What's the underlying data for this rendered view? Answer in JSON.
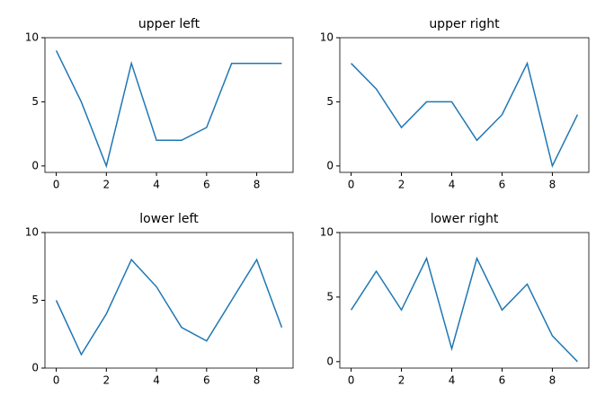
{
  "chart_data": [
    {
      "type": "line",
      "title": "upper left",
      "x": [
        0,
        1,
        2,
        3,
        4,
        5,
        6,
        7,
        8,
        9
      ],
      "values": [
        9,
        5,
        0,
        8,
        2,
        2,
        3,
        8,
        8,
        8
      ],
      "color": "#1f77b4",
      "xlim": [
        -0.45,
        9.45
      ],
      "xticks": [
        0,
        2,
        4,
        6,
        8
      ],
      "ylim": [
        -0.5,
        10
      ],
      "yticks": [
        0,
        5,
        10
      ]
    },
    {
      "type": "line",
      "title": "upper right",
      "x": [
        0,
        1,
        2,
        3,
        4,
        5,
        6,
        7,
        8,
        9
      ],
      "values": [
        8,
        6,
        3,
        5,
        5,
        2,
        4,
        8,
        0,
        4
      ],
      "color": "#1f77b4",
      "xlim": [
        -0.45,
        9.45
      ],
      "xticks": [
        0,
        2,
        4,
        6,
        8
      ],
      "ylim": [
        -0.5,
        10
      ],
      "yticks": [
        0,
        5,
        10
      ]
    },
    {
      "type": "line",
      "title": "lower left",
      "x": [
        0,
        1,
        2,
        3,
        4,
        5,
        6,
        7,
        8,
        9
      ],
      "values": [
        5,
        1,
        4,
        8,
        6,
        3,
        2,
        5,
        8,
        3
      ],
      "color": "#1f77b4",
      "xlim": [
        -0.45,
        9.45
      ],
      "xticks": [
        0,
        2,
        4,
        6,
        8
      ],
      "ylim": [
        0,
        10
      ],
      "yticks": [
        0,
        5,
        10
      ]
    },
    {
      "type": "line",
      "title": "lower right",
      "x": [
        0,
        1,
        2,
        3,
        4,
        5,
        6,
        7,
        8,
        9
      ],
      "values": [
        4,
        7,
        4,
        8,
        1,
        8,
        4,
        6,
        2,
        0
      ],
      "color": "#1f77b4",
      "xlim": [
        -0.45,
        9.45
      ],
      "xticks": [
        0,
        2,
        4,
        6,
        8
      ],
      "ylim": [
        -0.5,
        10
      ],
      "yticks": [
        0,
        5,
        10
      ]
    }
  ]
}
